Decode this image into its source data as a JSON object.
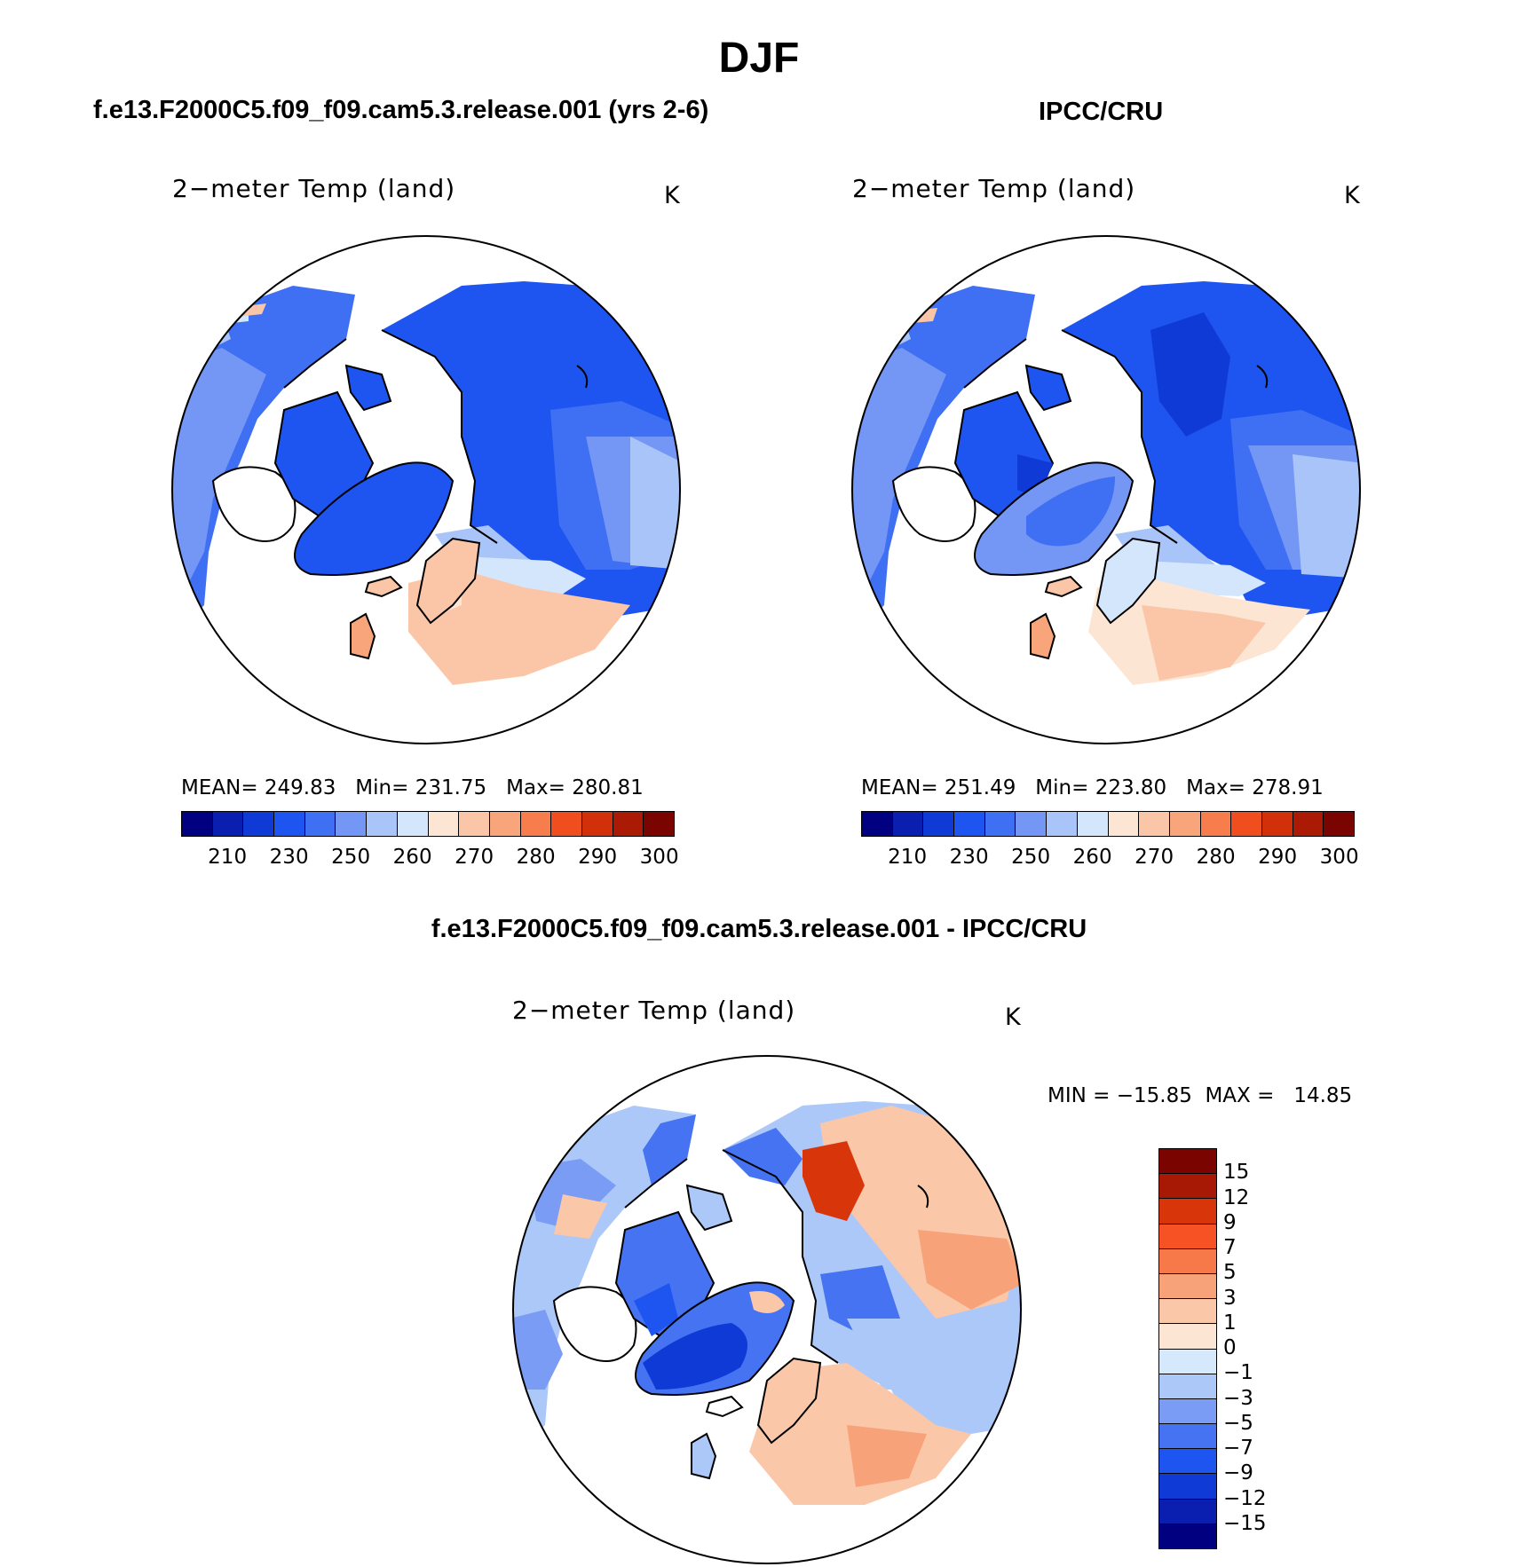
{
  "season_title": "DJF",
  "panels": {
    "model": {
      "header": "f.e13.F2000C5.f09_f09.cam5.3.release.001 (yrs 2-6)",
      "plot_title": "2−meter Temp (land)",
      "units": "K",
      "stats": "MEAN= 249.83   Min= 231.75   Max= 280.81"
    },
    "obs": {
      "header": "IPCC/CRU",
      "plot_title": "2−meter Temp (land)",
      "units": "K",
      "stats": "MEAN= 251.49   Min= 223.80   Max= 278.91"
    },
    "diff": {
      "header": "f.e13.F2000C5.f09_f09.cam5.3.release.001 - IPCC/CRU",
      "plot_title": "2−meter Temp (land)",
      "units": "K",
      "minmax": "MIN = −15.85  MAX =   14.85"
    }
  },
  "colorbars": {
    "abs": {
      "colors": [
        "#000080",
        "#0a1fb0",
        "#0f3ad6",
        "#1e55f0",
        "#3f6ff2",
        "#7496f4",
        "#a9c4f8",
        "#d4e6fb",
        "#fde5d4",
        "#fbc6a8",
        "#f8a57c",
        "#f77d4d",
        "#f04e1e",
        "#d22f0b",
        "#aa1a05",
        "#7a0500"
      ],
      "labels": [
        "210",
        "230",
        "250",
        "260",
        "270",
        "280",
        "290",
        "300"
      ]
    },
    "diff": {
      "colors": [
        "#7a0500",
        "#a71805",
        "#d8360a",
        "#f75224",
        "#f7794a",
        "#f8a27a",
        "#fbc7a9",
        "#fde5d4",
        "#d6e8fb",
        "#acc8f8",
        "#7a9cf4",
        "#4573f2",
        "#1e55f0",
        "#0f3ad6",
        "#0a1fb0",
        "#000080"
      ],
      "labels": [
        "15",
        "12",
        "9",
        "7",
        "5",
        "3",
        "1",
        "0",
        "−1",
        "−3",
        "−5",
        "−7",
        "−9",
        "−12",
        "−15"
      ]
    }
  },
  "map_palette": {
    "ocean": "#ffffff",
    "coast": "#000000",
    "abs_cold": "#1e55f0",
    "abs_mid": "#3f6ff2",
    "abs_cool": "#7496f4",
    "abs_pale": "#a9c4f8",
    "abs_light": "#d4e6fb",
    "abs_warm1": "#fde5d4",
    "abs_warm2": "#fbc6a8",
    "abs_warm3": "#f8a57c",
    "diff_deep_blue": "#0f3ad6",
    "diff_blue": "#4573f2",
    "diff_pale_blue": "#acc8f8",
    "diff_pale_red": "#fbc7a9",
    "diff_red": "#f8a27a",
    "diff_hot": "#d8360a"
  }
}
